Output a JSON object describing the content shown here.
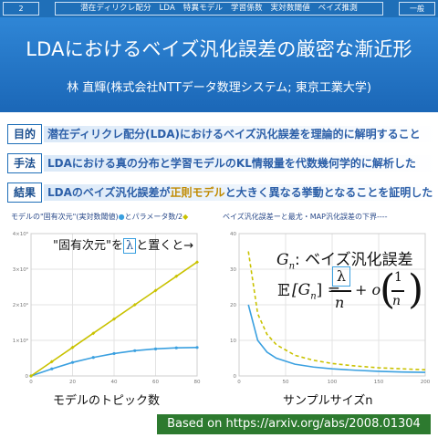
{
  "header": {
    "page_number": "2",
    "breadcrumb": "潜在ディリクレ配分　LDA　特異モデル　学習係数　実対数閾値　ベイズ推測",
    "category": "一般"
  },
  "hero": {
    "title": "LDAにおけるベイズ汎化誤差の厳密な漸近形",
    "author": "林 直輝(株式会社NTTデータ数理システム; 東京工業大学)"
  },
  "summary": [
    {
      "tag": "目的",
      "text": "潜在ディリクレ配分(LDA)におけるベイズ汎化誤差を理論的に解明すること"
    },
    {
      "tag": "手法",
      "text": "LDAにおける真の分布と学習モデルのKL情報量を代数幾何学的に解析した"
    },
    {
      "tag": "結果",
      "text_before": "LDAのベイズ汎化誤差が",
      "text_highlight": "正則モデル",
      "text_after": "と大きく異なる挙動となることを証明した"
    }
  ],
  "left_chart_header": {
    "prefix": "モデルの\"固有次元\"(実対数閾値)",
    "dot": "●",
    "middle": "とパラメータ数/2",
    "diamond": "◆"
  },
  "right_chart_header": "ベイズ汎化誤差ーと最尤・MAP汎化誤差の下界----",
  "annotation": {
    "left": "\"固有次元\"を",
    "symbol": "λ",
    "right": "と置くと→"
  },
  "formula": {
    "subject": "G",
    "subscript": "n",
    "label": ": ベイズ汎化誤差",
    "expectation": "𝔼",
    "eq_left": "[G",
    "eq_sub": "n",
    "eq_right": "] =",
    "lambda": "λ",
    "n": "n",
    "plus_o": "+ o",
    "one": "1",
    "n2": "n"
  },
  "left_caption": "モデルのトピック数",
  "right_caption": "サンプルサイズn",
  "footer": "Based on https://arxiv.org/abs/2008.01304",
  "colors": {
    "brand_blue": "#1f6fb8",
    "series_blue": "#3aa0e0",
    "series_yellow": "#c9c200",
    "footer_green": "#2d7a2f"
  },
  "chart_data": [
    {
      "type": "line",
      "x": [
        0,
        10,
        20,
        30,
        40,
        50,
        60,
        70,
        80
      ],
      "xlim": [
        0,
        80
      ],
      "ylim": [
        0,
        4000000
      ],
      "yticks": [
        "0",
        "1×10⁶",
        "2×10⁶",
        "3×10⁶",
        "4×10⁶"
      ],
      "xticks": [
        "0",
        "20",
        "40",
        "60",
        "80"
      ],
      "xlabel": "モデルのトピック数",
      "series": [
        {
          "name": "実対数閾値",
          "marker": "circle",
          "values": [
            0,
            200000,
            380000,
            520000,
            630000,
            710000,
            760000,
            790000,
            800000
          ]
        },
        {
          "name": "パラメータ数/2",
          "marker": "diamond",
          "values": [
            0,
            400000,
            800000,
            1200000,
            1600000,
            2000000,
            2400000,
            2800000,
            3200000
          ]
        }
      ]
    },
    {
      "type": "line",
      "x": [
        10,
        20,
        30,
        40,
        60,
        80,
        100,
        125,
        150,
        175,
        200
      ],
      "xlim": [
        0,
        200
      ],
      "ylim": [
        0,
        40
      ],
      "yticks": [
        "0",
        "10",
        "20",
        "30",
        "40"
      ],
      "xticks": [
        "0",
        "50",
        "100",
        "150",
        "200"
      ],
      "xlabel": "サンプルサイズn",
      "series": [
        {
          "name": "ベイズ汎化誤差",
          "style": "solid",
          "values": [
            20,
            10,
            6.7,
            5,
            3.3,
            2.5,
            2,
            1.6,
            1.3,
            1.1,
            1
          ]
        },
        {
          "name": "最尤・MAP汎化誤差の下界",
          "style": "dashed",
          "values": [
            35,
            17.5,
            11.7,
            8.8,
            5.8,
            4.4,
            3.5,
            2.8,
            2.3,
            2,
            1.75
          ]
        }
      ]
    }
  ]
}
